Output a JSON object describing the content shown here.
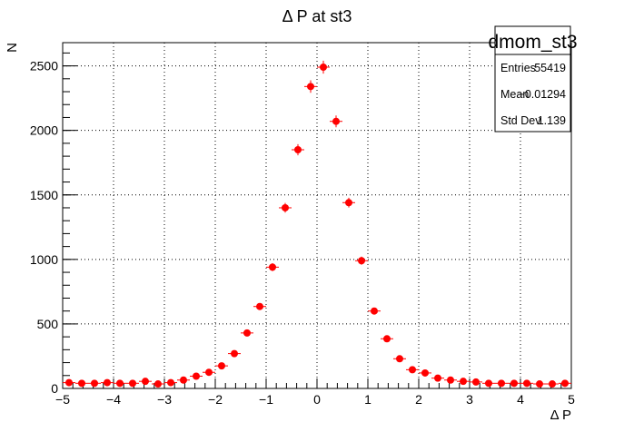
{
  "chart_data": {
    "type": "scatter",
    "title": "Δ P at st3",
    "xlabel": "Δ P",
    "ylabel": "N",
    "xlim": [
      -5,
      5
    ],
    "ylim": [
      0,
      2680
    ],
    "x_ticks": [
      -5,
      -4,
      -3,
      -2,
      -1,
      0,
      1,
      2,
      3,
      4,
      5
    ],
    "x_tick_labels": [
      "−5",
      "−4",
      "−3",
      "−2",
      "−1",
      "0",
      "1",
      "2",
      "3",
      "4",
      "5"
    ],
    "y_ticks": [
      0,
      500,
      1000,
      1500,
      2000,
      2500
    ],
    "y_tick_labels": [
      "0",
      "500",
      "1000",
      "1500",
      "2000",
      "2500"
    ],
    "grid": true,
    "marker_color": "#ff0000",
    "series": [
      {
        "x": [
          -4.875,
          -4.625,
          -4.375,
          -4.125,
          -3.875,
          -3.625,
          -3.375,
          -3.125,
          -2.875,
          -2.625,
          -2.375,
          -2.125,
          -1.875,
          -1.625,
          -1.375,
          -1.125,
          -0.875,
          -0.625,
          -0.375,
          -0.125,
          0.125,
          0.375,
          0.625,
          0.875,
          1.125,
          1.375,
          1.625,
          1.875,
          2.125,
          2.375,
          2.625,
          2.875,
          3.125,
          3.375,
          3.625,
          3.875,
          4.125,
          4.375,
          4.625,
          4.875
        ],
        "y": [
          45,
          40,
          40,
          45,
          40,
          40,
          55,
          35,
          45,
          65,
          95,
          125,
          175,
          270,
          430,
          635,
          940,
          1400,
          1850,
          2340,
          2490,
          2070,
          1440,
          990,
          600,
          385,
          230,
          145,
          120,
          80,
          65,
          55,
          50,
          40,
          40,
          40,
          40,
          35,
          35,
          40
        ]
      }
    ]
  },
  "stats_box": {
    "name": "dmom_st3",
    "rows": [
      {
        "label": "Entries",
        "value": "55419"
      },
      {
        "label": "Mean",
        "value": "−0.01294"
      },
      {
        "label": "Std Dev",
        "value": "1.139"
      }
    ]
  }
}
